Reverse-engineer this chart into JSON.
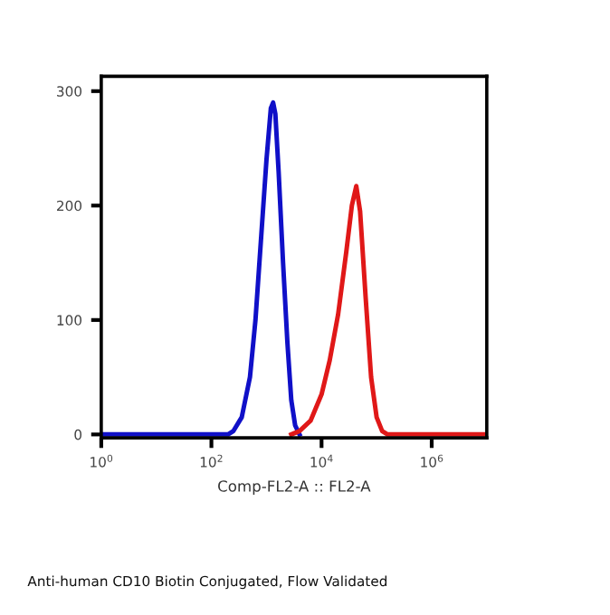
{
  "chart_data": {
    "type": "line",
    "xlabel": "Comp-FL2-A :: FL2-A",
    "log": "x",
    "xlim": [
      1,
      10000000
    ],
    "xticks": [
      {
        "value": 1,
        "label": "10$^{0}$"
      },
      {
        "value": 100,
        "label": "10$^{2}$"
      },
      {
        "value": 10000,
        "label": "10$^{4}$"
      },
      {
        "value": 1000000,
        "label": "10$^{6}$"
      }
    ],
    "ylim": [
      -3,
      313
    ],
    "yticks": [
      0,
      100,
      200,
      300
    ],
    "grid": false,
    "legend": false,
    "marker": "none",
    "line_style": "solid",
    "series": [
      {
        "color": "#1010c8",
        "x": [
          1,
          100,
          200,
          251,
          355,
          501,
          631,
          794,
          1000,
          1200,
          1320,
          1450,
          1660,
          2000,
          2400,
          2820,
          3310,
          3980
        ],
        "values": [
          0,
          0,
          0,
          3,
          15,
          50,
          100,
          170,
          240,
          285,
          290,
          280,
          230,
          150,
          80,
          30,
          8,
          0
        ]
      },
      {
        "color": "#e01818",
        "x": [
          2820,
          3980,
          6310,
          10000,
          14100,
          20000,
          28200,
          35500,
          42700,
          50100,
          63100,
          79400,
          100000,
          126000,
          158000,
          1000000,
          10000000
        ],
        "values": [
          0,
          3,
          12,
          35,
          65,
          105,
          160,
          200,
          217,
          195,
          120,
          50,
          15,
          3,
          0,
          0,
          0
        ]
      }
    ],
    "annotations": [
      "Anti-human CD10 Biotin Conjugated, Flow Validated"
    ]
  }
}
